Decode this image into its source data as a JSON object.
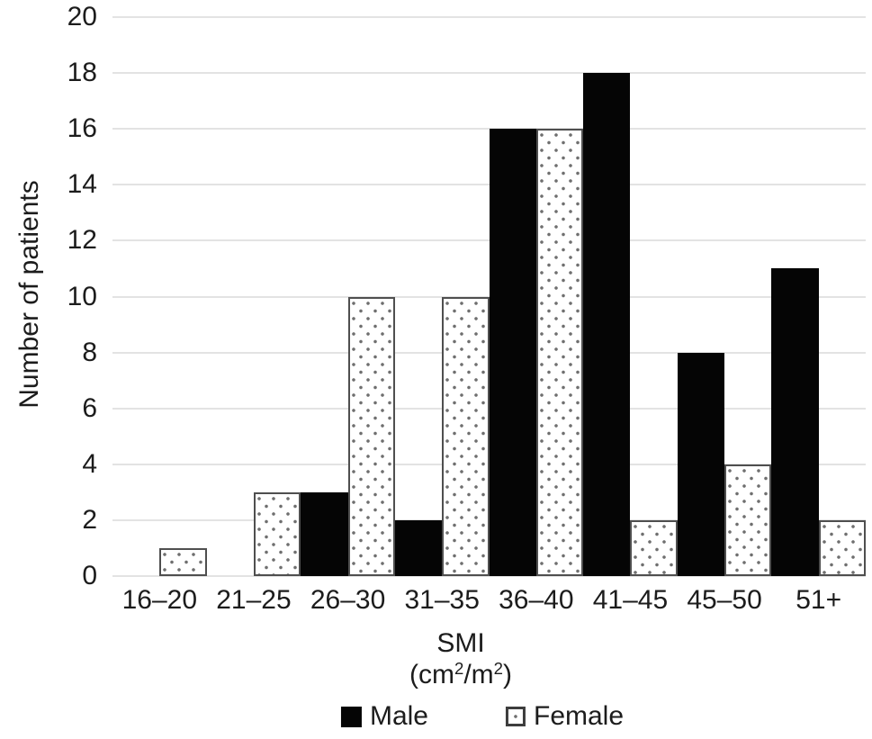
{
  "figure": {
    "x_axis": {
      "title_line1": "SMI",
      "title_line2": {
        "p1": "(cm",
        "sup1": "2",
        "p2": "/m",
        "sup2": "2",
        "p3": ")"
      }
    },
    "legend": {
      "items": [
        {
          "label": "Male",
          "style": "solid-black"
        },
        {
          "label": "Female",
          "style": "dotted-white"
        }
      ]
    }
  },
  "chart_data": {
    "type": "bar",
    "categories": [
      "16–20",
      "21–25",
      "26–30",
      "31–35",
      "36–40",
      "41–45",
      "45–50",
      "51+"
    ],
    "series": [
      {
        "name": "Male",
        "pattern": "solid",
        "color": "#050505",
        "values": [
          0,
          0,
          3,
          2,
          16,
          18,
          8,
          11
        ]
      },
      {
        "name": "Female",
        "pattern": "dots",
        "color": "#ffffff",
        "values": [
          1,
          3,
          10,
          10,
          16,
          2,
          4,
          2
        ]
      }
    ],
    "title": "",
    "xlabel": "SMI (cm²/m²)",
    "ylabel": "Number of patients",
    "ylim": [
      0,
      20
    ],
    "yticks": [
      0,
      2,
      4,
      6,
      8,
      10,
      12,
      14,
      16,
      18,
      20
    ],
    "grid": "horizontal",
    "legend_position": "bottom"
  },
  "colors": {
    "bar_male": "#050505",
    "bar_female_border": "#4f4f4f",
    "dot": "#6f6f6f",
    "gridline": "#e3e3e3",
    "text": "#1c1c1c"
  }
}
